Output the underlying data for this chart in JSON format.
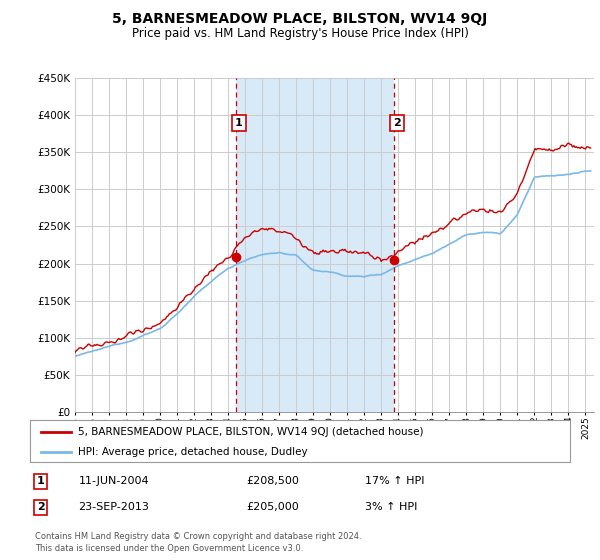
{
  "title": "5, BARNESMEADOW PLACE, BILSTON, WV14 9QJ",
  "subtitle": "Price paid vs. HM Land Registry's House Price Index (HPI)",
  "legend_line1": "5, BARNESMEADOW PLACE, BILSTON, WV14 9QJ (detached house)",
  "legend_line2": "HPI: Average price, detached house, Dudley",
  "annotation1_label": "1",
  "annotation1_date": "11-JUN-2004",
  "annotation1_price": "£208,500",
  "annotation1_hpi": "17% ↑ HPI",
  "annotation2_label": "2",
  "annotation2_date": "23-SEP-2013",
  "annotation2_price": "£205,000",
  "annotation2_hpi": "3% ↑ HPI",
  "footer": "Contains HM Land Registry data © Crown copyright and database right 2024.\nThis data is licensed under the Open Government Licence v3.0.",
  "hpi_color": "#7ab8e8",
  "price_color": "#cc0000",
  "vline_color": "#cc0000",
  "shade_color": "#d8eaf8",
  "background_color": "#ffffff",
  "plot_bg_color": "#ffffff",
  "grid_color": "#cccccc",
  "ylim": [
    0,
    450000
  ],
  "yticks": [
    0,
    50000,
    100000,
    150000,
    200000,
    250000,
    300000,
    350000,
    400000,
    450000
  ],
  "sale1_x": 2004.44,
  "sale1_y": 208500,
  "sale2_x": 2013.73,
  "sale2_y": 205000,
  "xmin": 1995.0,
  "xmax": 2025.5,
  "hpi_key_years": [
    1995,
    1996,
    1997,
    1998,
    1999,
    2000,
    2001,
    2002,
    2003,
    2004,
    2005,
    2006,
    2007,
    2008,
    2009,
    2010,
    2011,
    2012,
    2013,
    2014,
    2015,
    2016,
    2017,
    2018,
    2019,
    2020,
    2021,
    2022,
    2023,
    2024,
    2025
  ],
  "hpi_key_vals": [
    75000,
    80000,
    86000,
    93000,
    103000,
    112000,
    133000,
    155000,
    175000,
    193000,
    205000,
    212000,
    215000,
    210000,
    190000,
    188000,
    183000,
    182000,
    186000,
    198000,
    207000,
    216000,
    230000,
    242000,
    245000,
    242000,
    268000,
    318000,
    320000,
    322000,
    325000
  ],
  "red_key_years": [
    1995,
    1996,
    1997,
    1998,
    1999,
    2000,
    2001,
    2002,
    2003,
    2004,
    2005,
    2006,
    2007,
    2008,
    2009,
    2010,
    2011,
    2012,
    2013,
    2014,
    2015,
    2016,
    2017,
    2018,
    2019,
    2020,
    2021,
    2022,
    2023,
    2024,
    2025
  ],
  "red_key_vals": [
    82000,
    87000,
    93000,
    101000,
    112000,
    122000,
    145000,
    168000,
    192000,
    208500,
    240000,
    250000,
    248000,
    235000,
    215000,
    218000,
    218000,
    218000,
    205000,
    220000,
    233000,
    243000,
    258000,
    272000,
    275000,
    270000,
    300000,
    358000,
    357000,
    360000,
    355000
  ]
}
